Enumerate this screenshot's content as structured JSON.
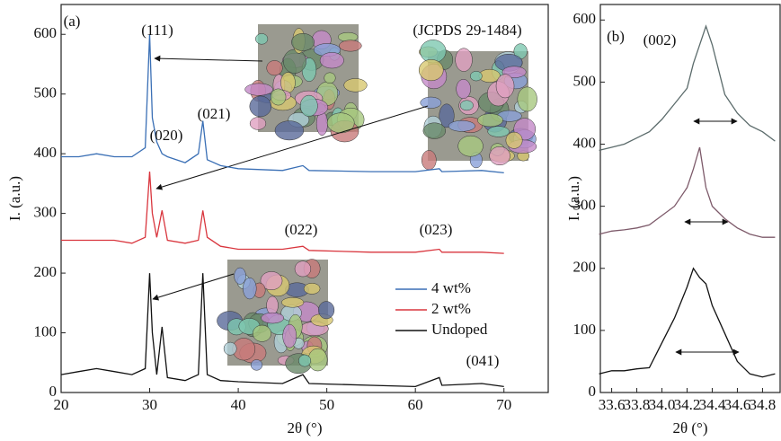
{
  "chart_data": [
    {
      "type": "line",
      "x_label": "2θ (°)",
      "y_label": "I. (a.u.)",
      "annotations": [
        "(a)",
        "(111)",
        "(020)",
        "(021)",
        "(022)",
        "(023)",
        "(041)",
        "(JCPDS 29-1484)"
      ],
      "xlim": [
        20,
        75
      ],
      "xticks": [
        20,
        30,
        40,
        50,
        60,
        70
      ],
      "ylim": [
        0,
        650
      ],
      "yticks": [
        0,
        100,
        200,
        300,
        400,
        500,
        600
      ],
      "legend": "lower right",
      "x": [
        20,
        22,
        24,
        26,
        28,
        29.5,
        30.0,
        30.3,
        30.8,
        31.4,
        32,
        34,
        35.5,
        36.0,
        36.5,
        38,
        40,
        45,
        47.3,
        48,
        55,
        60,
        62.7,
        63,
        67.5,
        70
      ],
      "series": [
        {
          "name": "4 wt%",
          "color": "#3a6fb5",
          "values": [
            395,
            395,
            400,
            395,
            395,
            410,
            600,
            460,
            420,
            400,
            395,
            385,
            400,
            455,
            390,
            380,
            375,
            372,
            380,
            372,
            370,
            370,
            375,
            370,
            372,
            368
          ]
        },
        {
          "name": "2 wt%",
          "color": "#d9363e",
          "values": [
            255,
            255,
            255,
            255,
            250,
            260,
            370,
            300,
            260,
            305,
            255,
            250,
            255,
            305,
            260,
            245,
            240,
            240,
            245,
            238,
            235,
            235,
            240,
            235,
            235,
            233
          ]
        },
        {
          "name": "Undoped",
          "color": "#111111",
          "values": [
            30,
            35,
            40,
            35,
            30,
            40,
            200,
            100,
            30,
            110,
            25,
            20,
            30,
            200,
            30,
            20,
            18,
            15,
            30,
            15,
            12,
            10,
            25,
            12,
            15,
            10
          ]
        }
      ]
    },
    {
      "type": "line",
      "x_label": "2θ (°)",
      "y_label": "I. (a.u.)",
      "annotations": [
        "(b)",
        "(002)"
      ],
      "xlim": [
        33.51,
        34.94
      ],
      "xticks": [
        33.6,
        33.8,
        {
          "value": 34,
          "label": "34.0"
        },
        34.2,
        34.4,
        34.6,
        34.8
      ],
      "ylim": [
        0,
        625
      ],
      "yticks": [
        0,
        100,
        200,
        300,
        400,
        500,
        600
      ],
      "x": [
        33.5,
        33.6,
        33.7,
        33.8,
        33.9,
        34.0,
        34.1,
        34.2,
        34.25,
        34.3,
        34.35,
        34.4,
        34.5,
        34.6,
        34.7,
        34.8,
        34.9
      ],
      "series": [
        {
          "color": "#5b6b6b",
          "values": [
            390,
            395,
            400,
            410,
            420,
            440,
            465,
            490,
            530,
            560,
            590,
            560,
            480,
            450,
            430,
            420,
            405
          ]
        },
        {
          "color": "#7d5a6a",
          "values": [
            255,
            260,
            262,
            265,
            270,
            285,
            300,
            330,
            360,
            395,
            330,
            300,
            280,
            265,
            255,
            250,
            250
          ]
        },
        {
          "color": "#111111",
          "values": [
            30,
            35,
            35,
            38,
            40,
            80,
            120,
            170,
            200,
            185,
            175,
            140,
            95,
            50,
            30,
            25,
            30
          ]
        }
      ]
    }
  ]
}
